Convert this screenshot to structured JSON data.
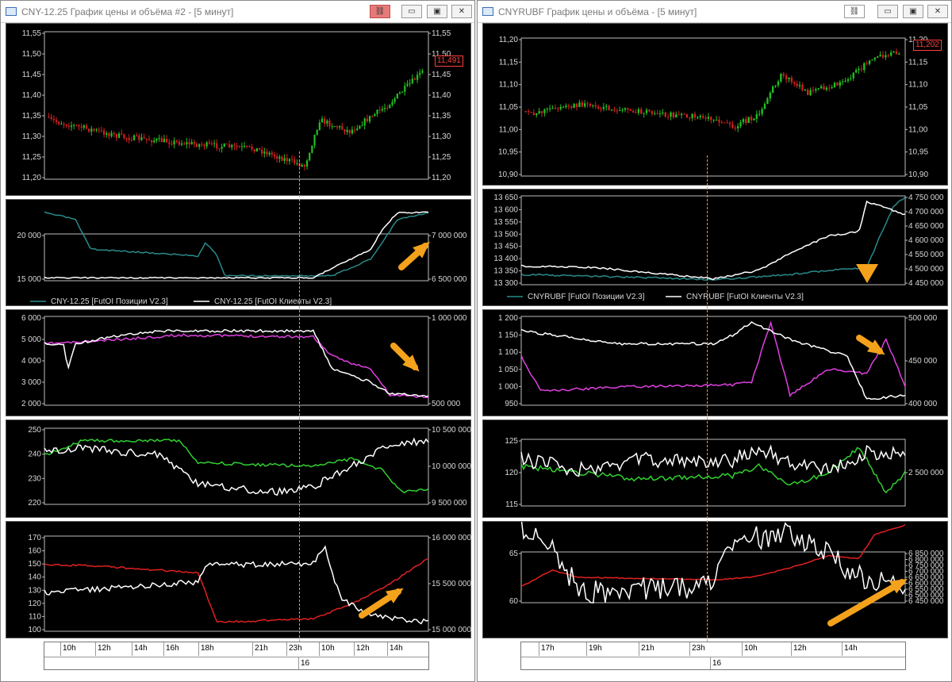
{
  "left": {
    "title": "CNY-12.25 График цены и объёма #2 - [5 минут]",
    "price_axis": [
      "11,55",
      "11,50",
      "11,45",
      "11,40",
      "11,35",
      "11,30",
      "11,25",
      "11,20"
    ],
    "price_axis_right": [
      "11,55",
      "11,50",
      "11,45",
      "11,40",
      "11,35",
      "11,30",
      "11,25",
      "11,20"
    ],
    "price_label": "11,491",
    "oi_left_axis": [
      "20 000",
      "15 000"
    ],
    "oi_right_axis": [
      "7 000 000",
      "6 500 000"
    ],
    "legend_1": "CNY-12.25 [FutOI Позиции V2.3]",
    "legend_2": "CNY-12.25 [FutOI Клиенты V2.3]",
    "p3_left_axis": [
      "6 000",
      "5 000",
      "4 000",
      "3 000",
      "2 000"
    ],
    "p3_right_axis": [
      "1 000 000",
      "500 000"
    ],
    "p4_left_axis": [
      "250",
      "240",
      "230",
      "220"
    ],
    "p4_right_axis": [
      "10 500 000",
      "10 000 000",
      "9 500 000"
    ],
    "p5_left_axis": [
      "170",
      "160",
      "150",
      "140",
      "130",
      "120",
      "110",
      "100"
    ],
    "p5_right_axis": [
      "16 000 000",
      "15 500 000",
      "15 000 000"
    ],
    "time_labels": [
      "10h",
      "12h",
      "14h",
      "16h",
      "18h",
      "21h",
      "23h",
      "10h",
      "12h",
      "14h"
    ],
    "day_label": "16",
    "colors": {
      "oi_pos": "#2a8a8a",
      "oi_cli": "#ffffff",
      "p3": "#e040e0",
      "p4": "#30d030",
      "p5": "#e02020",
      "arrow": "#f4a21c"
    }
  },
  "right": {
    "title": "CNYRUBF График цены и объёма - [5 минут]",
    "price_axis_left": [
      "11,20",
      "11,15",
      "11,10",
      "11,05",
      "11,00",
      "10,95",
      "10,90"
    ],
    "price_axis_right": [
      "11,20",
      "11,15",
      "11,10",
      "11,05",
      "11,00",
      "10,95",
      "10,90"
    ],
    "price_label": "11,202",
    "oi_left_axis": [
      "13 650",
      "13 600",
      "13 550",
      "13 500",
      "13 450",
      "13 400",
      "13 350",
      "13 300"
    ],
    "oi_right_axis": [
      "4 750 000",
      "4 700 000",
      "4 650 000",
      "4 600 000",
      "4 550 000",
      "4 500 000",
      "4 450 000"
    ],
    "legend_1": "CNYRUBF [FutOI Позиции V2.3]",
    "legend_2": "CNYRUBF [FutOI Клиенты V2.3]",
    "p3_left_axis": [
      "1 200",
      "1 150",
      "1 100",
      "1 050",
      "1 000",
      "950"
    ],
    "p3_right_axis": [
      "500 000",
      "450 000",
      "400 000"
    ],
    "p4_left_axis": [
      "125",
      "120",
      "115"
    ],
    "p4_right_axis": [
      "2 500 000"
    ],
    "p5_left_axis": [
      "65",
      "60"
    ],
    "p5_right_axis": [
      "6 850 000",
      "6 800 000",
      "6 750 000",
      "6 700 000",
      "6 650 000",
      "6 600 000",
      "6 550 000",
      "6 500 000",
      "6 450 000"
    ],
    "time_labels": [
      "17h",
      "19h",
      "21h",
      "23h",
      "10h",
      "12h",
      "14h"
    ],
    "day_label": "16"
  }
}
